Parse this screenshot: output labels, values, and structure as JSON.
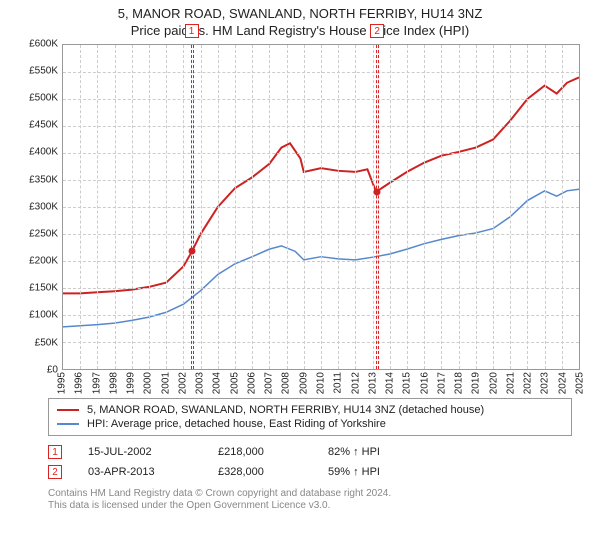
{
  "title": {
    "line1": "5, MANOR ROAD, SWANLAND, NORTH FERRIBY, HU14 3NZ",
    "line2": "Price paid vs. HM Land Registry's House Price Index (HPI)"
  },
  "chart": {
    "type": "line",
    "ylim": [
      0,
      600000
    ],
    "ytick_step": 50000,
    "y_ticks": [
      {
        "v": 0,
        "label": "£0"
      },
      {
        "v": 50000,
        "label": "£50K"
      },
      {
        "v": 100000,
        "label": "£100K"
      },
      {
        "v": 150000,
        "label": "£150K"
      },
      {
        "v": 200000,
        "label": "£200K"
      },
      {
        "v": 250000,
        "label": "£250K"
      },
      {
        "v": 300000,
        "label": "£300K"
      },
      {
        "v": 350000,
        "label": "£350K"
      },
      {
        "v": 400000,
        "label": "£400K"
      },
      {
        "v": 450000,
        "label": "£450K"
      },
      {
        "v": 500000,
        "label": "£500K"
      },
      {
        "v": 550000,
        "label": "£550K"
      },
      {
        "v": 600000,
        "label": "£600K"
      }
    ],
    "xlim": [
      1995,
      2025
    ],
    "x_ticks": [
      {
        "v": 1995,
        "label": "1995"
      },
      {
        "v": 1996,
        "label": "1996"
      },
      {
        "v": 1997,
        "label": "1997"
      },
      {
        "v": 1998,
        "label": "1998"
      },
      {
        "v": 1999,
        "label": "1999"
      },
      {
        "v": 2000,
        "label": "2000"
      },
      {
        "v": 2001,
        "label": "2001"
      },
      {
        "v": 2002,
        "label": "2002"
      },
      {
        "v": 2003,
        "label": "2003"
      },
      {
        "v": 2004,
        "label": "2004"
      },
      {
        "v": 2005,
        "label": "2005"
      },
      {
        "v": 2006,
        "label": "2006"
      },
      {
        "v": 2007,
        "label": "2007"
      },
      {
        "v": 2008,
        "label": "2008"
      },
      {
        "v": 2009,
        "label": "2009"
      },
      {
        "v": 2010,
        "label": "2010"
      },
      {
        "v": 2011,
        "label": "2011"
      },
      {
        "v": 2012,
        "label": "2012"
      },
      {
        "v": 2013,
        "label": "2013"
      },
      {
        "v": 2014,
        "label": "2014"
      },
      {
        "v": 2015,
        "label": "2015"
      },
      {
        "v": 2016,
        "label": "2016"
      },
      {
        "v": 2017,
        "label": "2017"
      },
      {
        "v": 2018,
        "label": "2018"
      },
      {
        "v": 2019,
        "label": "2019"
      },
      {
        "v": 2020,
        "label": "2020"
      },
      {
        "v": 2021,
        "label": "2021"
      },
      {
        "v": 2022,
        "label": "2022"
      },
      {
        "v": 2023,
        "label": "2023"
      },
      {
        "v": 2024,
        "label": "2024"
      },
      {
        "v": 2025,
        "label": "2025"
      }
    ],
    "grid_color": "#cccccc",
    "background_color": "#ffffff",
    "series": [
      {
        "name": "price_paid",
        "color": "#cc2222",
        "width": 2,
        "points": [
          [
            1995,
            140000
          ],
          [
            1996,
            140000
          ],
          [
            1997,
            142000
          ],
          [
            1998,
            144000
          ],
          [
            1999,
            147000
          ],
          [
            2000,
            152000
          ],
          [
            2001,
            160000
          ],
          [
            2002,
            190000
          ],
          [
            2002.5,
            218000
          ],
          [
            2003,
            250000
          ],
          [
            2004,
            300000
          ],
          [
            2005,
            335000
          ],
          [
            2006,
            355000
          ],
          [
            2007,
            380000
          ],
          [
            2007.7,
            410000
          ],
          [
            2008.2,
            418000
          ],
          [
            2008.8,
            390000
          ],
          [
            2009,
            365000
          ],
          [
            2010,
            372000
          ],
          [
            2011,
            367000
          ],
          [
            2012,
            365000
          ],
          [
            2012.7,
            370000
          ],
          [
            2013.2,
            328000
          ],
          [
            2014,
            345000
          ],
          [
            2015,
            365000
          ],
          [
            2016,
            382000
          ],
          [
            2017,
            395000
          ],
          [
            2018,
            402000
          ],
          [
            2019,
            410000
          ],
          [
            2020,
            425000
          ],
          [
            2021,
            460000
          ],
          [
            2022,
            500000
          ],
          [
            2023,
            525000
          ],
          [
            2023.7,
            510000
          ],
          [
            2024.3,
            530000
          ],
          [
            2025,
            540000
          ]
        ]
      },
      {
        "name": "hpi",
        "color": "#5588cc",
        "width": 1.5,
        "points": [
          [
            1995,
            78000
          ],
          [
            1996,
            80000
          ],
          [
            1997,
            82000
          ],
          [
            1998,
            85000
          ],
          [
            1999,
            90000
          ],
          [
            2000,
            96000
          ],
          [
            2001,
            105000
          ],
          [
            2002,
            120000
          ],
          [
            2003,
            145000
          ],
          [
            2004,
            175000
          ],
          [
            2005,
            195000
          ],
          [
            2006,
            208000
          ],
          [
            2007,
            222000
          ],
          [
            2007.7,
            228000
          ],
          [
            2008.5,
            218000
          ],
          [
            2009,
            202000
          ],
          [
            2010,
            208000
          ],
          [
            2011,
            204000
          ],
          [
            2012,
            202000
          ],
          [
            2013,
            207000
          ],
          [
            2014,
            213000
          ],
          [
            2015,
            222000
          ],
          [
            2016,
            232000
          ],
          [
            2017,
            240000
          ],
          [
            2018,
            247000
          ],
          [
            2019,
            252000
          ],
          [
            2020,
            260000
          ],
          [
            2021,
            282000
          ],
          [
            2022,
            312000
          ],
          [
            2023,
            330000
          ],
          [
            2023.7,
            320000
          ],
          [
            2024.3,
            330000
          ],
          [
            2025,
            333000
          ]
        ]
      }
    ],
    "markers": [
      {
        "idx": "1",
        "x": 2002.5,
        "y": 218000,
        "color": "#cc2222"
      },
      {
        "idx": "2",
        "x": 2013.25,
        "y": 328000,
        "color": "#cc2222"
      }
    ]
  },
  "legend": {
    "items": [
      {
        "color": "#cc2222",
        "label": "5, MANOR ROAD, SWANLAND, NORTH FERRIBY, HU14 3NZ (detached house)"
      },
      {
        "color": "#5588cc",
        "label": "HPI: Average price, detached house, East Riding of Yorkshire"
      }
    ]
  },
  "events": [
    {
      "idx": "1",
      "date": "15-JUL-2002",
      "price": "£218,000",
      "delta": "82% ↑ HPI"
    },
    {
      "idx": "2",
      "date": "03-APR-2013",
      "price": "£328,000",
      "delta": "59% ↑ HPI"
    }
  ],
  "footer": {
    "line1": "Contains HM Land Registry data © Crown copyright and database right 2024.",
    "line2": "This data is licensed under the Open Government Licence v3.0."
  }
}
